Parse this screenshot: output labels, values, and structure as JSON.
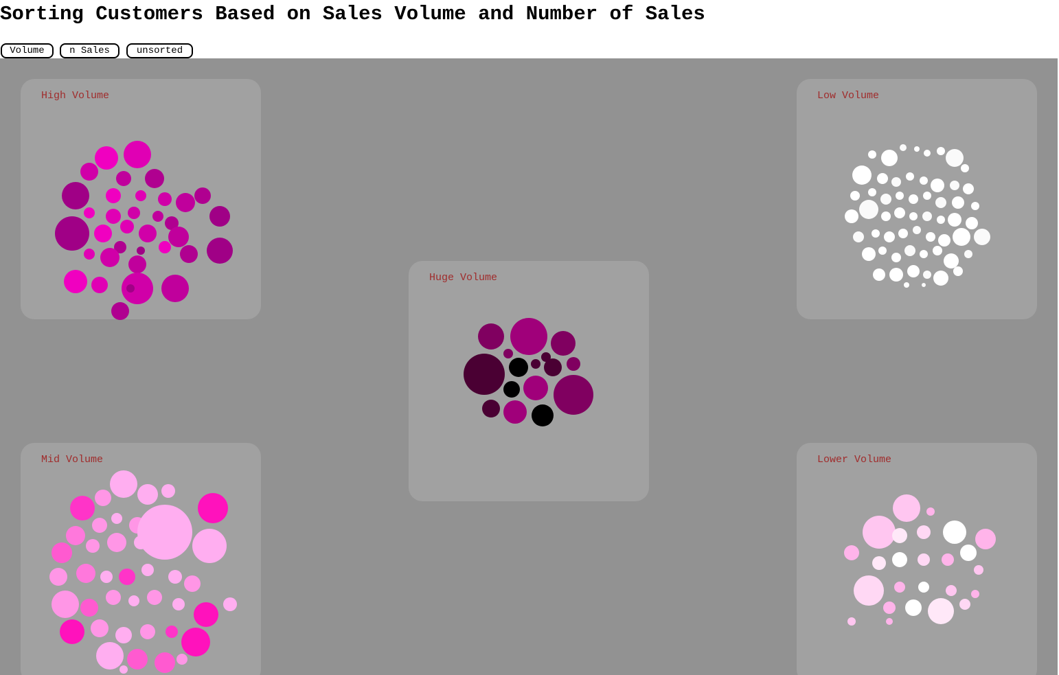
{
  "title": "Sorting Customers Based on Sales Volume and Number of Sales",
  "toolbar": {
    "buttons": [
      {
        "id": "volume",
        "label": "Volume"
      },
      {
        "id": "nsales",
        "label": "n Sales"
      },
      {
        "id": "unsorted",
        "label": "unsorted"
      }
    ]
  },
  "stage_bg": "#929292",
  "panel_bg": "#a1a1a1",
  "label_color": "#a02c2c",
  "groups": [
    {
      "id": "high",
      "label": "High Volume",
      "palette": [
        "#f000c0",
        "#e000b4",
        "#d000a8",
        "#c0009c",
        "#b00090",
        "#a00086"
      ],
      "bubbles": [
        [
          -50,
          -75,
          17
        ],
        [
          -5,
          -80,
          20
        ],
        [
          -75,
          -55,
          13
        ],
        [
          -25,
          -45,
          11
        ],
        [
          20,
          -45,
          14
        ],
        [
          -95,
          -20,
          20
        ],
        [
          -40,
          -20,
          11
        ],
        [
          0,
          -20,
          8
        ],
        [
          35,
          -15,
          10
        ],
        [
          65,
          -10,
          14
        ],
        [
          90,
          -20,
          12
        ],
        [
          115,
          10,
          15
        ],
        [
          -75,
          5,
          8
        ],
        [
          -40,
          10,
          11
        ],
        [
          -10,
          5,
          9
        ],
        [
          25,
          10,
          8
        ],
        [
          45,
          20,
          10
        ],
        [
          -100,
          35,
          25
        ],
        [
          -55,
          35,
          13
        ],
        [
          -20,
          25,
          10
        ],
        [
          10,
          35,
          13
        ],
        [
          55,
          40,
          15
        ],
        [
          -30,
          55,
          9
        ],
        [
          0,
          60,
          6
        ],
        [
          35,
          55,
          9
        ],
        [
          -75,
          65,
          8
        ],
        [
          -45,
          70,
          14
        ],
        [
          -5,
          80,
          13
        ],
        [
          70,
          65,
          13
        ],
        [
          115,
          60,
          19
        ],
        [
          -95,
          105,
          17
        ],
        [
          -60,
          110,
          12
        ],
        [
          -5,
          115,
          23
        ],
        [
          50,
          115,
          20
        ],
        [
          -30,
          148,
          13
        ],
        [
          -15,
          115,
          6
        ]
      ]
    },
    {
      "id": "low",
      "label": "Low Volume",
      "palette": [
        "#ffffff",
        "#ffffff",
        "#fafafa",
        "#ffffff"
      ],
      "bubbles": [
        [
          -65,
          -80,
          6
        ],
        [
          -40,
          -75,
          12
        ],
        [
          -20,
          -90,
          5
        ],
        [
          0,
          -88,
          4
        ],
        [
          15,
          -82,
          5
        ],
        [
          35,
          -85,
          6
        ],
        [
          55,
          -75,
          13
        ],
        [
          70,
          -60,
          6
        ],
        [
          -80,
          -50,
          14
        ],
        [
          -50,
          -45,
          8
        ],
        [
          -30,
          -40,
          7
        ],
        [
          -10,
          -48,
          6
        ],
        [
          10,
          -42,
          6
        ],
        [
          30,
          -35,
          10
        ],
        [
          55,
          -35,
          7
        ],
        [
          75,
          -30,
          8
        ],
        [
          -90,
          -20,
          7
        ],
        [
          -65,
          -25,
          6
        ],
        [
          -45,
          -15,
          8
        ],
        [
          -25,
          -20,
          6
        ],
        [
          -5,
          -15,
          7
        ],
        [
          15,
          -20,
          6
        ],
        [
          35,
          -10,
          8
        ],
        [
          60,
          -10,
          9
        ],
        [
          85,
          -5,
          6
        ],
        [
          -95,
          10,
          10
        ],
        [
          -70,
          0,
          14
        ],
        [
          -45,
          10,
          7
        ],
        [
          -25,
          5,
          8
        ],
        [
          -5,
          10,
          6
        ],
        [
          15,
          10,
          7
        ],
        [
          35,
          15,
          6
        ],
        [
          55,
          15,
          10
        ],
        [
          80,
          20,
          9
        ],
        [
          -85,
          40,
          8
        ],
        [
          -60,
          35,
          6
        ],
        [
          -40,
          40,
          8
        ],
        [
          -20,
          35,
          7
        ],
        [
          0,
          30,
          6
        ],
        [
          20,
          40,
          7
        ],
        [
          40,
          45,
          9
        ],
        [
          65,
          40,
          13
        ],
        [
          95,
          40,
          12
        ],
        [
          -70,
          65,
          10
        ],
        [
          -50,
          60,
          6
        ],
        [
          -30,
          70,
          7
        ],
        [
          -10,
          60,
          8
        ],
        [
          10,
          65,
          6
        ],
        [
          30,
          60,
          7
        ],
        [
          50,
          75,
          11
        ],
        [
          75,
          65,
          6
        ],
        [
          -55,
          95,
          9
        ],
        [
          -30,
          95,
          10
        ],
        [
          -5,
          90,
          9
        ],
        [
          15,
          95,
          6
        ],
        [
          35,
          100,
          11
        ],
        [
          60,
          90,
          7
        ],
        [
          -15,
          110,
          4
        ],
        [
          10,
          110,
          3
        ]
      ]
    },
    {
      "id": "huge",
      "label": "Huge Volume",
      "palette": [
        "#000000",
        "#4a0033",
        "#800060",
        "#a0007a"
      ],
      "bubbles": [
        [
          -55,
          -80,
          19,
          2
        ],
        [
          0,
          -80,
          27,
          3
        ],
        [
          50,
          -70,
          18,
          2
        ],
        [
          -30,
          -55,
          7,
          2
        ],
        [
          25,
          -50,
          7,
          1
        ],
        [
          65,
          -40,
          10,
          2
        ],
        [
          -65,
          -25,
          30,
          1
        ],
        [
          -15,
          -35,
          14,
          0
        ],
        [
          10,
          -40,
          7,
          1
        ],
        [
          35,
          -35,
          13,
          1
        ],
        [
          -25,
          -3,
          12,
          0
        ],
        [
          10,
          -5,
          18,
          3
        ],
        [
          65,
          5,
          29,
          2
        ],
        [
          -55,
          25,
          13,
          1
        ],
        [
          -20,
          30,
          17,
          3
        ],
        [
          20,
          35,
          16,
          0
        ]
      ]
    },
    {
      "id": "mid",
      "label": "Mid Volume",
      "palette": [
        "#ffaef0",
        "#ff96e6",
        "#ff78dc",
        "#ff5ad0",
        "#ff34c8",
        "#ff12bc"
      ],
      "bubbles": [
        [
          -25,
          -130,
          20,
          0
        ],
        [
          10,
          -115,
          15,
          0
        ],
        [
          40,
          -120,
          10,
          0
        ],
        [
          -55,
          -110,
          12,
          1
        ],
        [
          -85,
          -95,
          18,
          4
        ],
        [
          105,
          -95,
          22,
          5
        ],
        [
          -60,
          -70,
          11,
          1
        ],
        [
          -35,
          -80,
          8,
          0
        ],
        [
          -5,
          -70,
          12,
          1
        ],
        [
          35,
          -60,
          40,
          0
        ],
        [
          -95,
          -55,
          14,
          2
        ],
        [
          -115,
          -30,
          15,
          3
        ],
        [
          -70,
          -40,
          10,
          1
        ],
        [
          -35,
          -45,
          14,
          1
        ],
        [
          0,
          -45,
          10,
          0
        ],
        [
          100,
          -40,
          25,
          0
        ],
        [
          -120,
          5,
          13,
          1
        ],
        [
          -80,
          0,
          14,
          2
        ],
        [
          -50,
          5,
          9,
          0
        ],
        [
          -20,
          5,
          12,
          4
        ],
        [
          10,
          -5,
          9,
          0
        ],
        [
          50,
          5,
          10,
          0
        ],
        [
          75,
          15,
          12,
          1
        ],
        [
          -110,
          45,
          20,
          1
        ],
        [
          -75,
          50,
          13,
          3
        ],
        [
          -40,
          35,
          11,
          1
        ],
        [
          -10,
          40,
          8,
          0
        ],
        [
          20,
          35,
          11,
          1
        ],
        [
          55,
          45,
          9,
          0
        ],
        [
          95,
          60,
          18,
          5
        ],
        [
          130,
          45,
          10,
          0
        ],
        [
          -100,
          85,
          18,
          5
        ],
        [
          -60,
          80,
          13,
          1
        ],
        [
          -25,
          90,
          12,
          0
        ],
        [
          10,
          85,
          11,
          1
        ],
        [
          45,
          85,
          9,
          4
        ],
        [
          80,
          100,
          21,
          5
        ],
        [
          -45,
          120,
          20,
          0
        ],
        [
          -5,
          125,
          15,
          3
        ],
        [
          35,
          130,
          15,
          3
        ],
        [
          -25,
          140,
          6,
          0
        ],
        [
          60,
          125,
          8,
          1
        ]
      ]
    },
    {
      "id": "lower",
      "label": "Lower Volume",
      "palette": [
        "#ffc6f0",
        "#ffb4ea",
        "#ffd8f4",
        "#ffe8f8",
        "#ffffff"
      ],
      "bubbles": [
        [
          -15,
          -95,
          20,
          0
        ],
        [
          20,
          -90,
          6,
          1
        ],
        [
          55,
          -60,
          17,
          4
        ],
        [
          -55,
          -60,
          24,
          0
        ],
        [
          10,
          -60,
          10,
          2
        ],
        [
          -25,
          -55,
          11,
          3
        ],
        [
          100,
          -50,
          15,
          1
        ],
        [
          75,
          -30,
          12,
          4
        ],
        [
          -95,
          -30,
          11,
          1
        ],
        [
          -55,
          -15,
          10,
          3
        ],
        [
          -25,
          -20,
          11,
          4
        ],
        [
          10,
          -20,
          9,
          2
        ],
        [
          45,
          -20,
          9,
          1
        ],
        [
          90,
          -5,
          7,
          0
        ],
        [
          -70,
          25,
          22,
          2
        ],
        [
          -25,
          20,
          8,
          1
        ],
        [
          10,
          20,
          8,
          4
        ],
        [
          50,
          25,
          8,
          0
        ],
        [
          85,
          30,
          6,
          1
        ],
        [
          -40,
          50,
          9,
          1
        ],
        [
          -5,
          50,
          12,
          4
        ],
        [
          35,
          55,
          19,
          3
        ],
        [
          70,
          45,
          8,
          2
        ],
        [
          -95,
          70,
          6,
          0
        ],
        [
          -40,
          70,
          5,
          1
        ]
      ]
    }
  ]
}
